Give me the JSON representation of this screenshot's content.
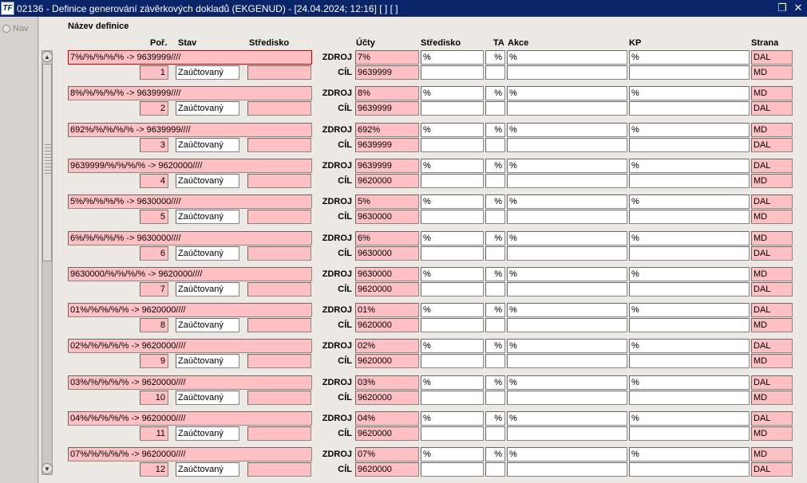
{
  "window": {
    "title": "02136 - Definice generování závěrkových dokladů (EKGENUD) - [24.04.2024; 12:16]  [ ]  [ ]",
    "app_icon": "TF",
    "restore_icon": "restore-icon",
    "close_icon": "close-icon"
  },
  "nav": {
    "label": "Nav"
  },
  "headers": {
    "nazev": "Název definice",
    "por": "Poř.",
    "stav": "Stav",
    "stredisko_left": "Středisko",
    "ucty": "Účty",
    "stredisko_right": "Středisko",
    "ta": "TA",
    "akce": "Akce",
    "kp": "KP",
    "strana": "Strana"
  },
  "labels": {
    "zdroj": "ZDROJ",
    "cil": "CÍL"
  },
  "records": [
    {
      "name": "7%/%/%/%/% -> 9639999////",
      "por": "1",
      "stav": "Zaúčtovaný",
      "zdroj_ucet": "7%",
      "cil_ucet": "9639999",
      "str": "%",
      "ta": "%",
      "akce": "%",
      "kp": "%",
      "strana_zdroj": "DAL",
      "strana_cil": "MD"
    },
    {
      "name": "8%/%/%/%/% -> 9639999////",
      "por": "2",
      "stav": "Zaúčtovaný",
      "zdroj_ucet": "8%",
      "cil_ucet": "9639999",
      "str": "%",
      "ta": "%",
      "akce": "%",
      "kp": "%",
      "strana_zdroj": "MD",
      "strana_cil": "DAL"
    },
    {
      "name": "692%/%/%/%/% -> 9639999////",
      "por": "3",
      "stav": "Zaúčtovaný",
      "zdroj_ucet": "692%",
      "cil_ucet": "9639999",
      "str": "%",
      "ta": "%",
      "akce": "%",
      "kp": "%",
      "strana_zdroj": "MD",
      "strana_cil": "DAL"
    },
    {
      "name": "9639999/%/%/%/% -> 9620000////",
      "por": "4",
      "stav": "Zaúčtovaný",
      "zdroj_ucet": "9639999",
      "cil_ucet": "9620000",
      "str": "%",
      "ta": "%",
      "akce": "%",
      "kp": "%",
      "strana_zdroj": "DAL",
      "strana_cil": "MD"
    },
    {
      "name": "5%/%/%/%/% -> 9630000////",
      "por": "5",
      "stav": "Zaúčtovaný",
      "zdroj_ucet": "5%",
      "cil_ucet": "9630000",
      "str": "%",
      "ta": "%",
      "akce": "%",
      "kp": "%",
      "strana_zdroj": "DAL",
      "strana_cil": "MD"
    },
    {
      "name": "6%/%/%/%/% -> 9630000////",
      "por": "6",
      "stav": "Zaúčtovaný",
      "zdroj_ucet": "6%",
      "cil_ucet": "9630000",
      "str": "%",
      "ta": "%",
      "akce": "%",
      "kp": "%",
      "strana_zdroj": "MD",
      "strana_cil": "DAL"
    },
    {
      "name": "9630000/%/%/%/% -> 9620000////",
      "por": "7",
      "stav": "Zaúčtovaný",
      "zdroj_ucet": "9630000",
      "cil_ucet": "9620000",
      "str": "%",
      "ta": "%",
      "akce": "%",
      "kp": "%",
      "strana_zdroj": "MD",
      "strana_cil": "DAL"
    },
    {
      "name": "01%/%/%/%/% -> 9620000////",
      "por": "8",
      "stav": "Zaúčtovaný",
      "zdroj_ucet": "01%",
      "cil_ucet": "9620000",
      "str": "%",
      "ta": "%",
      "akce": "%",
      "kp": "%",
      "strana_zdroj": "DAL",
      "strana_cil": "MD"
    },
    {
      "name": "02%/%/%/%/% -> 9620000////",
      "por": "9",
      "stav": "Zaúčtovaný",
      "zdroj_ucet": "02%",
      "cil_ucet": "9620000",
      "str": "%",
      "ta": "%",
      "akce": "%",
      "kp": "%",
      "strana_zdroj": "DAL",
      "strana_cil": "MD"
    },
    {
      "name": "03%/%/%/%/% -> 9620000////",
      "por": "10",
      "stav": "Zaúčtovaný",
      "zdroj_ucet": "03%",
      "cil_ucet": "9620000",
      "str": "%",
      "ta": "%",
      "akce": "%",
      "kp": "%",
      "strana_zdroj": "DAL",
      "strana_cil": "MD"
    },
    {
      "name": "04%/%/%/%/% -> 9620000////",
      "por": "11",
      "stav": "Zaúčtovaný",
      "zdroj_ucet": "04%",
      "cil_ucet": "9620000",
      "str": "%",
      "ta": "%",
      "akce": "%",
      "kp": "%",
      "strana_zdroj": "DAL",
      "strana_cil": "MD"
    },
    {
      "name": "07%/%/%/%/% -> 9620000////",
      "por": "12",
      "stav": "Zaúčtovaný",
      "zdroj_ucet": "07%",
      "cil_ucet": "9620000",
      "str": "%",
      "ta": "%",
      "akce": "%",
      "kp": "%",
      "strana_zdroj": "MD",
      "strana_cil": "DAL"
    }
  ],
  "colors": {
    "titlebar": "#0a246a",
    "required_field": "#ffc0c4",
    "focus_border": "#d00000"
  }
}
